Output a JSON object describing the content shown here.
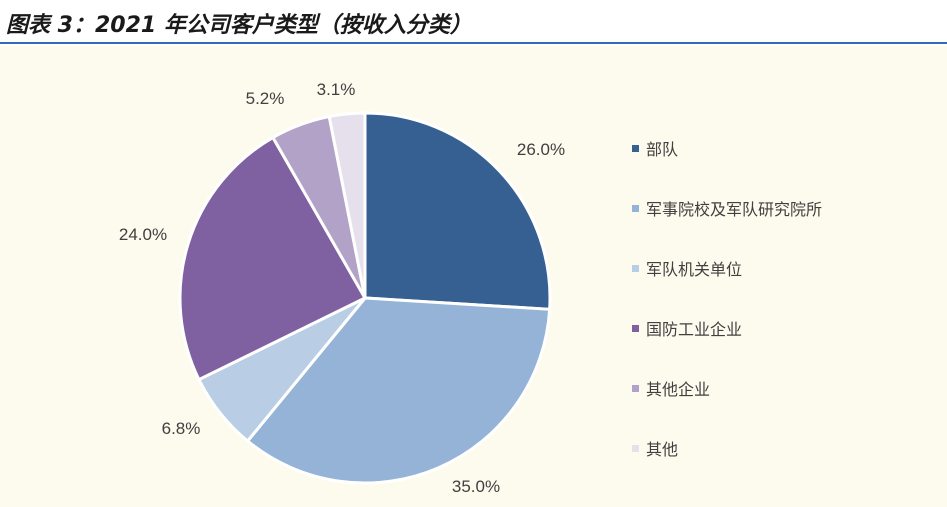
{
  "title": "图表 3：2021 年公司客户类型（按收入分类）",
  "chart_data": {
    "type": "pie",
    "categories": [
      "部队",
      "军事院校及军队研究院所",
      "军队机关单位",
      "国防工业企业",
      "其他企业",
      "其他"
    ],
    "values": [
      26.0,
      35.0,
      6.8,
      24.0,
      5.2,
      3.1
    ],
    "labels": [
      "26.0%",
      "35.0%",
      "6.8%",
      "24.0%",
      "5.2%",
      "3.1%"
    ],
    "colors": [
      "#376092",
      "#95b3d7",
      "#b9cde5",
      "#7f60a0",
      "#b3a2c7",
      "#e6e0ec"
    ],
    "legend_position": "right",
    "start_angle": "12 o'clock",
    "direction": "clockwise"
  }
}
